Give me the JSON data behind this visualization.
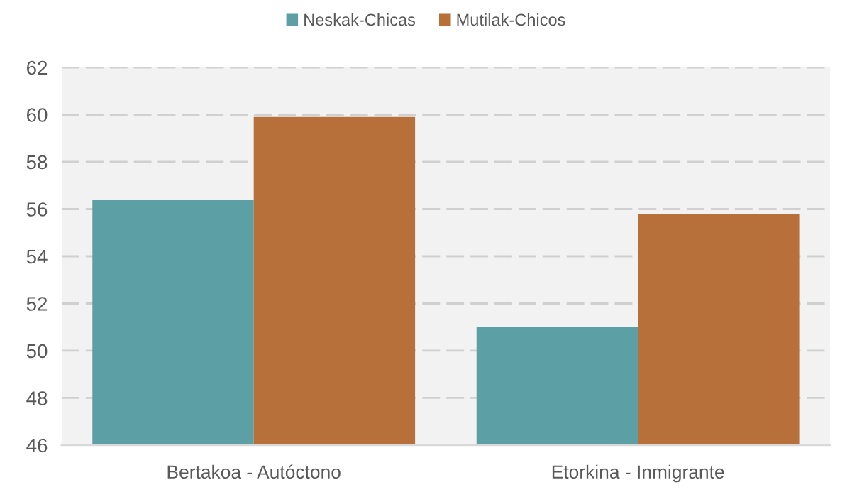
{
  "chart_data": {
    "type": "bar",
    "categories": [
      "Bertakoa - Autóctono",
      "Etorkina - Inmigrante"
    ],
    "series": [
      {
        "name": "Neskak-Chicas",
        "color": "#5ca0a6",
        "values": [
          56.4,
          51.0
        ]
      },
      {
        "name": "Mutilak-Chicos",
        "color": "#b8703b",
        "values": [
          59.9,
          55.8
        ]
      }
    ],
    "ylim": [
      46,
      62
    ],
    "yticks": [
      46,
      48,
      50,
      52,
      54,
      56,
      58,
      60,
      62
    ],
    "grid": "y",
    "legend": "top"
  }
}
